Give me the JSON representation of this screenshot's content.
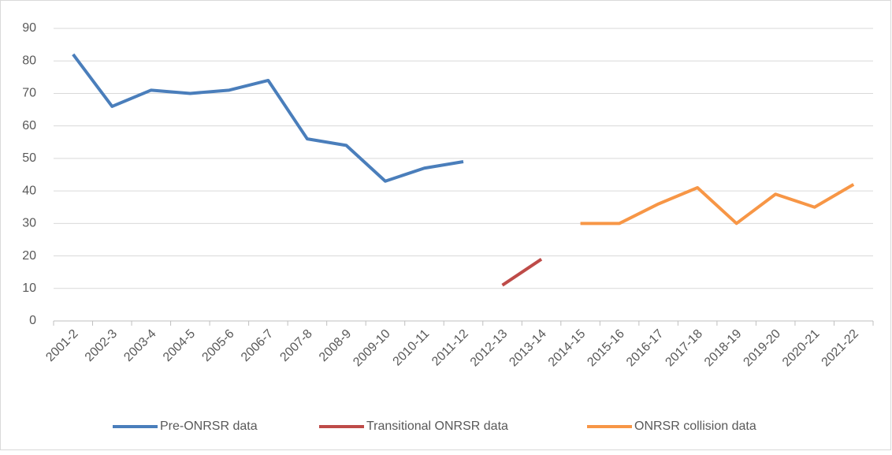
{
  "chart_data": {
    "type": "line",
    "categories": [
      "2001-2",
      "2002-3",
      "2003-4",
      "2004-5",
      "2005-6",
      "2006-7",
      "2007-8",
      "2008-9",
      "2009-10",
      "2010-11",
      "2011-12",
      "2012-13",
      "2013-14",
      "2014-15",
      "2015-16",
      "2016-17",
      "2017-18",
      "2018-19",
      "2019-20",
      "2020-21",
      "2021-22"
    ],
    "series": [
      {
        "name": "Pre-ONRSR data",
        "color": "#4a7ebb",
        "values": [
          82,
          66,
          71,
          70,
          71,
          74,
          56,
          54,
          43,
          47,
          49,
          null,
          null,
          null,
          null,
          null,
          null,
          null,
          null,
          null,
          null
        ]
      },
      {
        "name": "Transitional ONRSR data",
        "color": "#be4b48",
        "values": [
          null,
          null,
          null,
          null,
          null,
          null,
          null,
          null,
          null,
          null,
          null,
          11,
          19,
          null,
          null,
          null,
          null,
          null,
          null,
          null,
          null
        ]
      },
      {
        "name": "ONRSR collision data",
        "color": "#f79646",
        "values": [
          null,
          null,
          null,
          null,
          null,
          null,
          null,
          null,
          null,
          null,
          null,
          null,
          null,
          30,
          30,
          36,
          41,
          30,
          39,
          35,
          42
        ]
      }
    ],
    "ylim": [
      0,
      90
    ],
    "yticks": [
      0,
      10,
      20,
      30,
      40,
      50,
      60,
      70,
      80,
      90
    ],
    "grid": true,
    "legend": "bottom"
  }
}
